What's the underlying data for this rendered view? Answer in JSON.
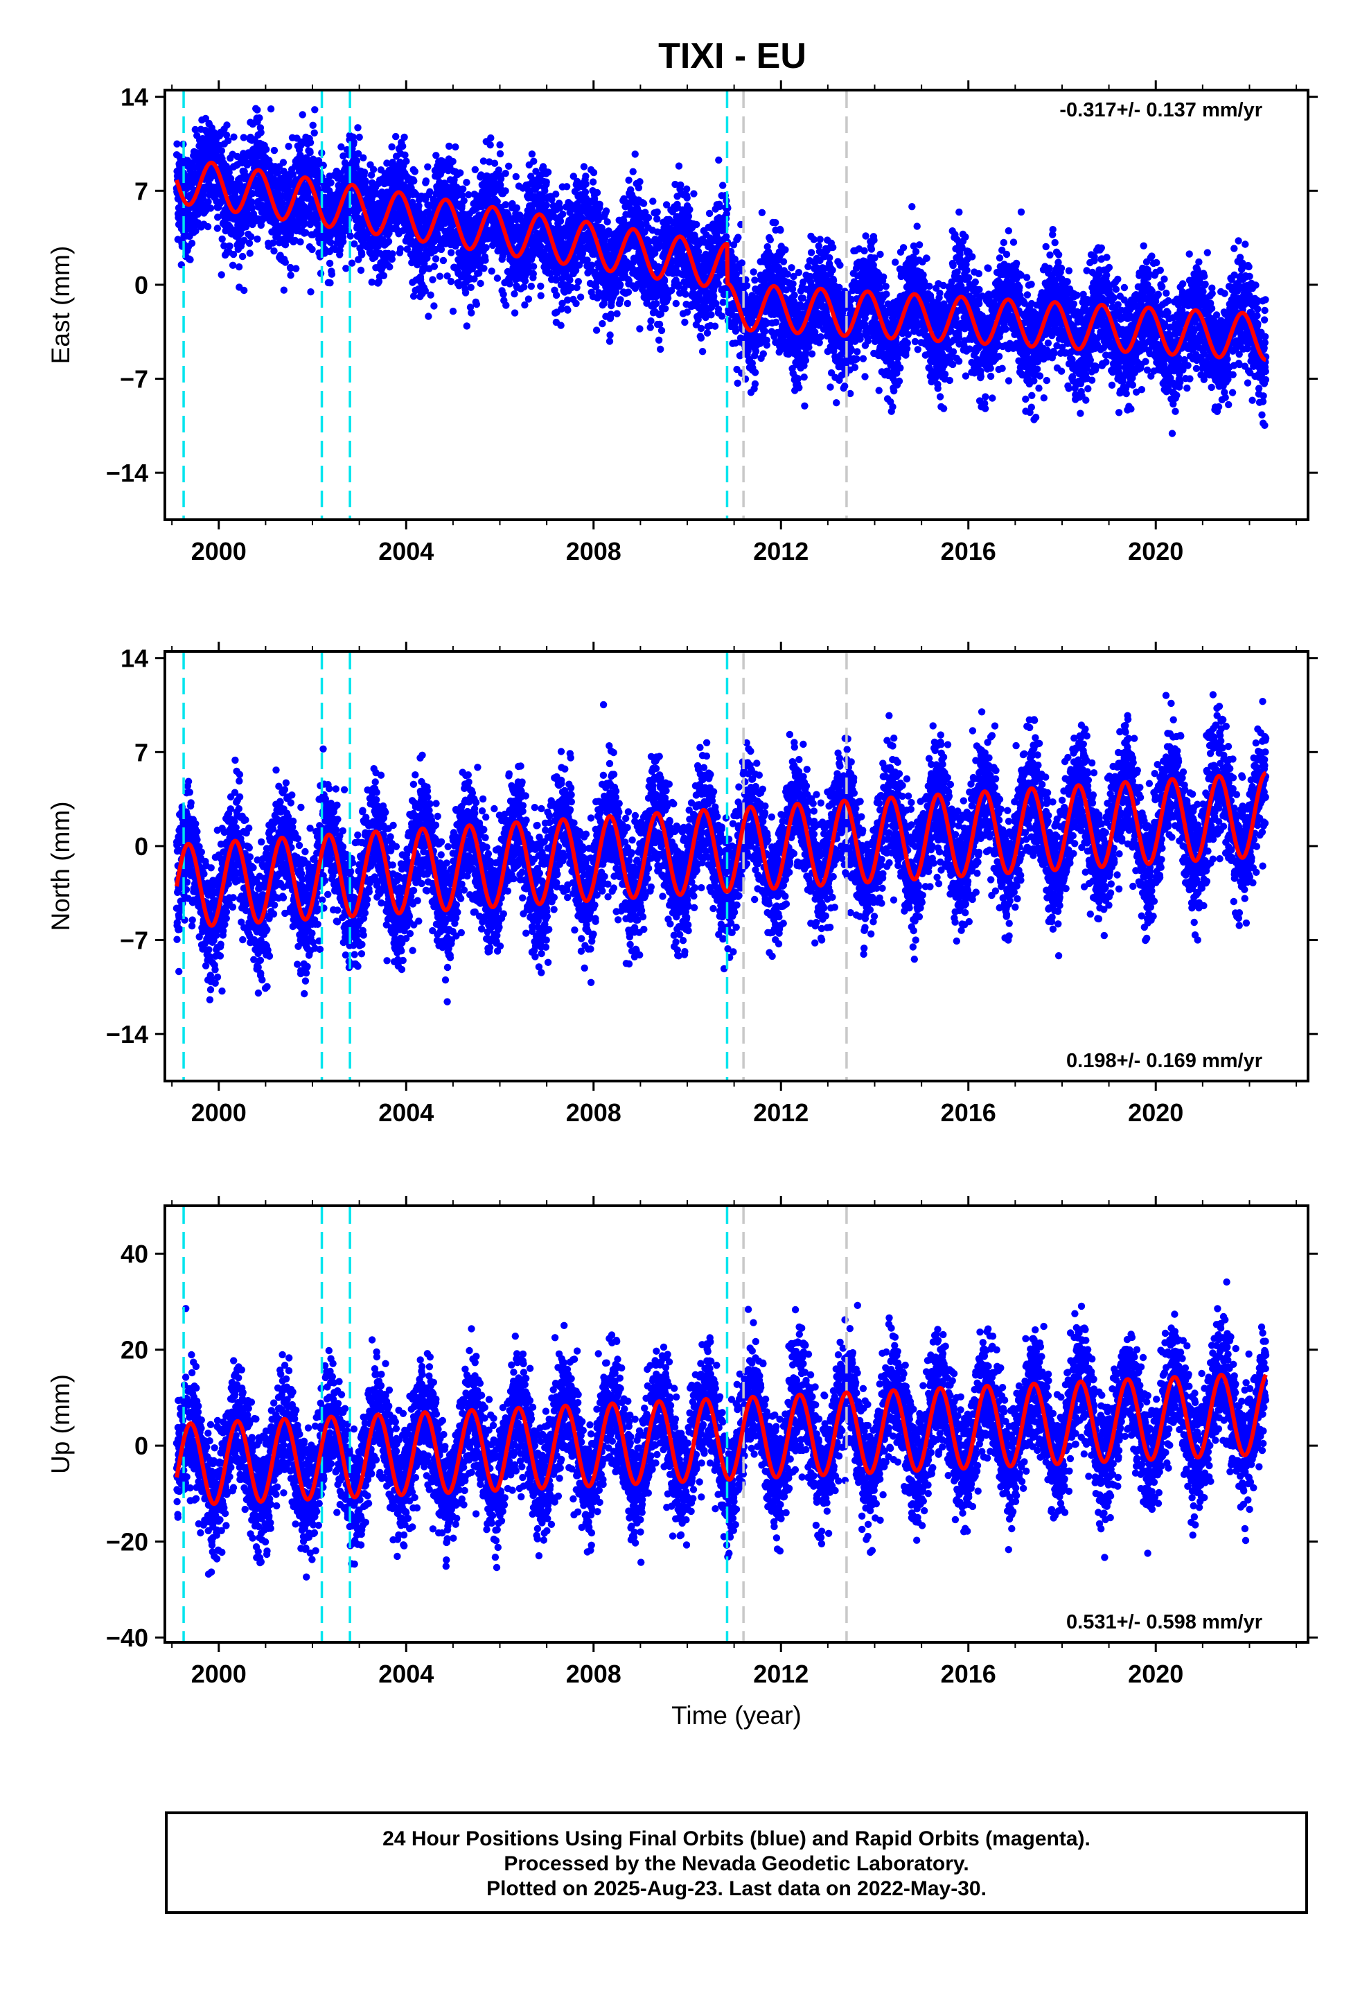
{
  "chart_data": {
    "title": "TIXI - EU",
    "type": "scatter",
    "x_ticks": [
      2000,
      2004,
      2008,
      2012,
      2016,
      2020
    ],
    "xlabel": "Time (year)",
    "xlim": [
      1998.85,
      2023.25
    ],
    "panels": [
      {
        "ylabel": "East (mm)",
        "ylim": [
          -17.5,
          14.5
        ],
        "y_ticks": [
          -14,
          -7,
          0,
          7,
          14
        ],
        "y_tick_labels": [
          "−14",
          "−7",
          "0",
          "7",
          "14"
        ],
        "rate_label": "-0.317+/- 0.137 mm/yr",
        "rate_position": "top-right",
        "model": {
          "start": 1999.1,
          "end": 2022.35,
          "segments": [
            {
              "from": 1999.1,
              "to": 2010.85,
              "offset": 7.8,
              "slope": -0.55
            },
            {
              "from": 2010.85,
              "to": 2022.35,
              "offset": -1.6,
              "slope": -0.2
            }
          ],
          "annual_amplitude": 1.7,
          "annual_phase": 0.85,
          "semiannual_amplitude": 0.0
        },
        "scatter_sigma": 2.0
      },
      {
        "ylabel": "North (mm)",
        "ylim": [
          -17.5,
          14.5
        ],
        "y_ticks": [
          -14,
          -7,
          0,
          7,
          14
        ],
        "y_tick_labels": [
          "−14",
          "−7",
          "0",
          "7",
          "14"
        ],
        "rate_label": "0.198+/- 0.169 mm/yr",
        "rate_position": "bottom-right",
        "model": {
          "start": 1999.1,
          "end": 2022.35,
          "segments": [
            {
              "from": 1999.1,
              "to": 2022.35,
              "offset": -3.0,
              "slope": 0.23
            }
          ],
          "annual_amplitude": 3.1,
          "annual_phase": 0.35,
          "semiannual_amplitude": 0.0
        },
        "scatter_sigma": 2.2
      },
      {
        "ylabel": "Up (mm)",
        "ylim": [
          -41,
          50
        ],
        "y_ticks": [
          -40,
          -20,
          0,
          20,
          40
        ],
        "y_tick_labels": [
          "−40",
          "−20",
          "0",
          "20",
          "40"
        ],
        "rate_label": "0.531+/- 0.598 mm/yr",
        "rate_position": "bottom-right",
        "model": {
          "start": 1999.1,
          "end": 2022.35,
          "segments": [
            {
              "from": 1999.1,
              "to": 2022.35,
              "offset": -4.0,
              "slope": 0.46
            }
          ],
          "annual_amplitude": 8.5,
          "annual_phase": 0.4,
          "semiannual_amplitude": 0.0
        },
        "scatter_sigma": 6.0
      }
    ],
    "series": [
      {
        "name": "Final Orbits",
        "color": "#0000ff",
        "marker": "dot"
      },
      {
        "name": "Model",
        "color": "#ff0000",
        "style": "line"
      }
    ],
    "offset_lines": [
      {
        "year": 1999.25,
        "color": "#00e5ee",
        "style": "dashed"
      },
      {
        "year": 2002.2,
        "color": "#00e5ee",
        "style": "dashed"
      },
      {
        "year": 2002.8,
        "color": "#00e5ee",
        "style": "dashed"
      },
      {
        "year": 2010.85,
        "color": "#00e5ee",
        "style": "dashed"
      },
      {
        "year": 2011.2,
        "color": "#c8c8c8",
        "style": "dashed"
      },
      {
        "year": 2013.4,
        "color": "#c8c8c8",
        "style": "dashed"
      }
    ],
    "grid": false
  },
  "footer": {
    "line1": "24 Hour Positions Using Final Orbits (blue) and Rapid Orbits (magenta).",
    "line2": "Processed by the Nevada Geodetic Laboratory.",
    "line3": "Plotted on 2025-Aug-23. Last data on 2022-May-30."
  }
}
